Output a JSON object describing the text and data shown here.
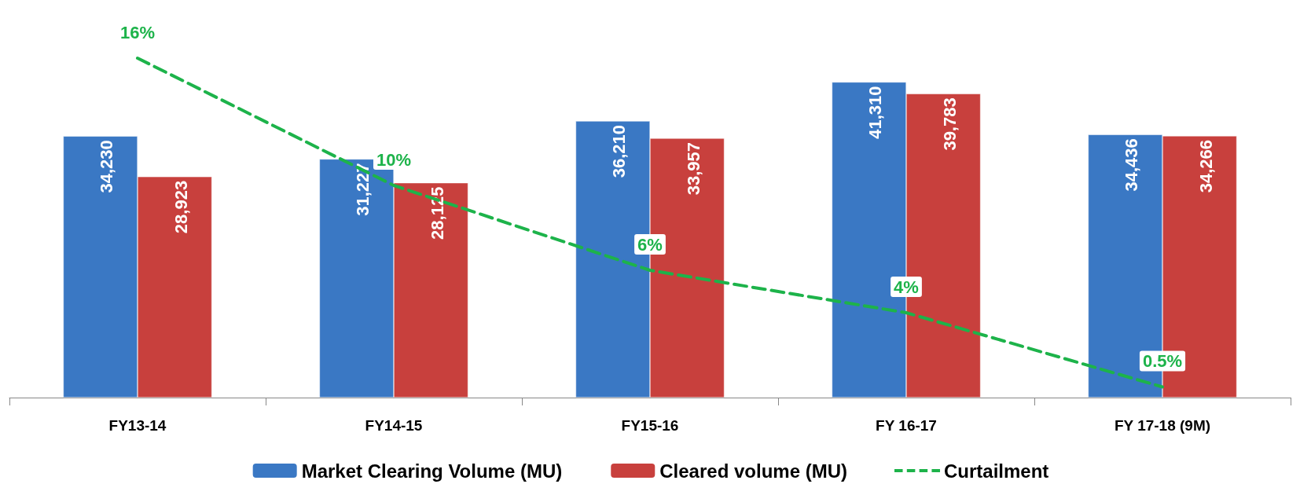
{
  "chart_data": {
    "type": "bar",
    "categories": [
      "FY13-14",
      "FY14-15",
      "FY15-16",
      "FY 16-17",
      "FY 17-18 (9M)"
    ],
    "series": [
      {
        "name": "Market Clearing Volume (MU)",
        "color": "#3a78c4",
        "values": [
          34230,
          31227,
          36210,
          41310,
          34436
        ],
        "value_labels": [
          "34,230",
          "31,227",
          "36,210",
          "41,310",
          "34,436"
        ]
      },
      {
        "name": "Cleared volume (MU)",
        "color": "#c8403d",
        "values": [
          28923,
          28125,
          33957,
          39783,
          34266
        ],
        "value_labels": [
          "28,923",
          "28,125",
          "33,957",
          "39,783",
          "34,266"
        ]
      },
      {
        "name": "Curtailment",
        "type": "line",
        "axis": "y2",
        "color": "#1db34a",
        "line_style": "dashed",
        "marker": "none",
        "values": [
          16,
          10,
          6,
          4,
          0.5
        ],
        "value_labels": [
          "16%",
          "10%",
          "6%",
          "4%",
          "0.5%"
        ]
      }
    ],
    "tick_labels": "x",
    "grid": false,
    "legend": "bottom"
  }
}
